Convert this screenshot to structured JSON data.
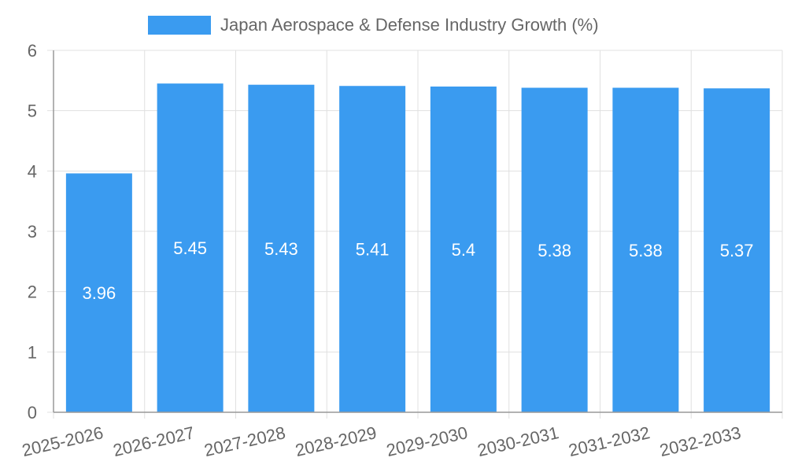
{
  "chart_data": {
    "type": "bar",
    "title": "",
    "xlabel": "",
    "ylabel": "",
    "categories": [
      "2025-2026",
      "2026-2027",
      "2027-2028",
      "2028-2029",
      "2029-2030",
      "2030-2031",
      "2031-2032",
      "2032-2033"
    ],
    "series": [
      {
        "name": "Japan Aerospace & Defense Industry Growth (%)",
        "values": [
          3.96,
          5.45,
          5.43,
          5.41,
          5.4,
          5.38,
          5.38,
          5.37
        ],
        "data_labels": [
          "3.96",
          "5.45",
          "5.43",
          "5.41",
          "5.4",
          "5.38",
          "5.38",
          "5.37"
        ]
      }
    ],
    "ylim": [
      0,
      6
    ],
    "yticks": [
      "0",
      "1",
      "2",
      "3",
      "4",
      "5",
      "6"
    ],
    "grid": true,
    "legend_position": "top-center",
    "colors": {
      "bar": "#3a9bf0",
      "grid": "#e0e0e0",
      "axis": "#999999",
      "tick_text": "#666666",
      "data_label": "#ffffff"
    }
  }
}
